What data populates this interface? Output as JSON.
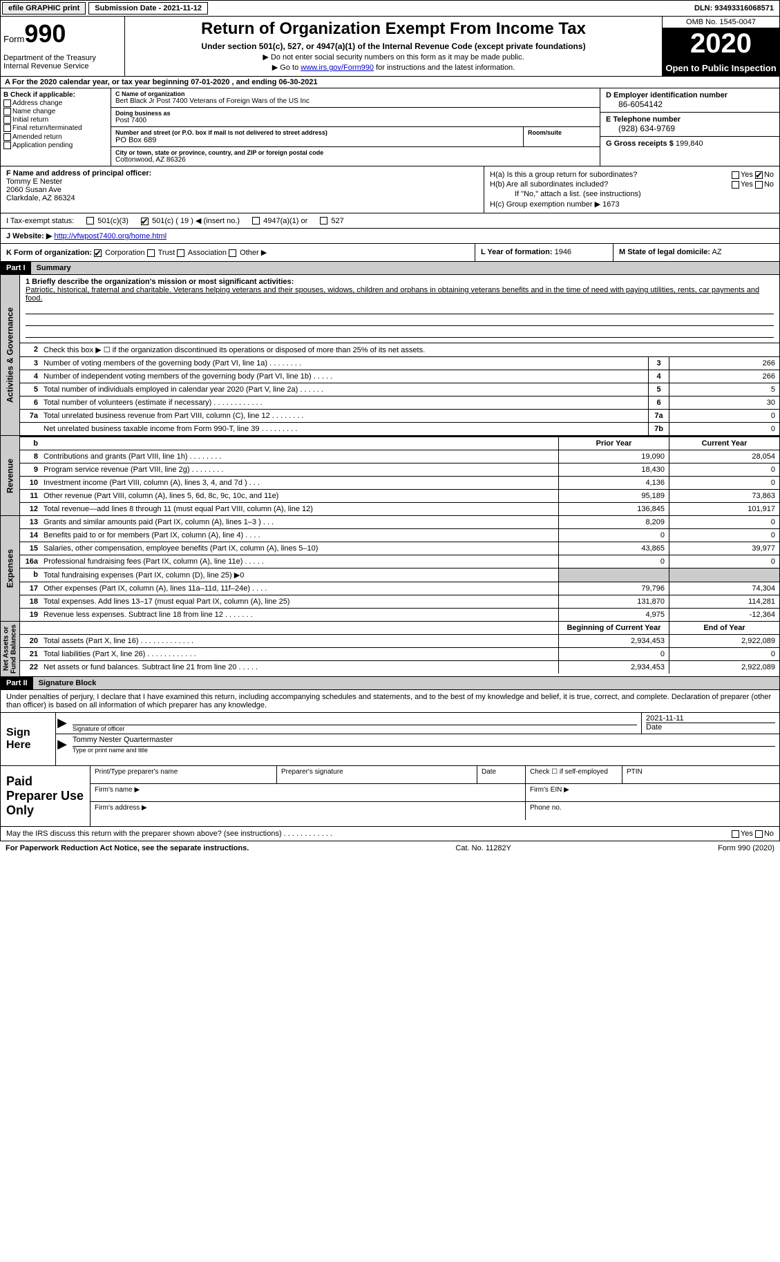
{
  "top": {
    "efile": "efile GRAPHIC print",
    "submission": "Submission Date - 2021-11-12",
    "dln": "DLN: 93493316068571"
  },
  "header": {
    "form_word": "Form",
    "form_num": "990",
    "dept": "Department of the Treasury\nInternal Revenue Service",
    "title": "Return of Organization Exempt From Income Tax",
    "subtitle": "Under section 501(c), 527, or 4947(a)(1) of the Internal Revenue Code (except private foundations)",
    "note1": "▶ Do not enter social security numbers on this form as it may be made public.",
    "note2_pre": "▶ Go to ",
    "note2_link": "www.irs.gov/Form990",
    "note2_post": " for instructions and the latest information.",
    "omb": "OMB No. 1545-0047",
    "year": "2020",
    "inspection": "Open to Public Inspection"
  },
  "rowA": "A For the 2020 calendar year, or tax year beginning 07-01-2020    , and ending 06-30-2021",
  "B": {
    "hdr": "B Check if applicable:",
    "opts": [
      "Address change",
      "Name change",
      "Initial return",
      "Final return/terminated",
      "Amended return",
      "Application pending"
    ]
  },
  "C": {
    "name_lbl": "C Name of organization",
    "name": "Bert Black Jr Post 7400 Veterans of Foreign Wars of the US Inc",
    "dba_lbl": "Doing business as",
    "dba": "Post 7400",
    "addr_lbl": "Number and street (or P.O. box if mail is not delivered to street address)",
    "addr": "PO Box 689",
    "room_lbl": "Room/suite",
    "city_lbl": "City or town, state or province, country, and ZIP or foreign postal code",
    "city": "Cottonwood, AZ  86326"
  },
  "D": {
    "ein_lbl": "D Employer identification number",
    "ein": "86-6054142",
    "phone_lbl": "E Telephone number",
    "phone": "(928) 634-9769",
    "gross_lbl": "G Gross receipts $",
    "gross": "199,840"
  },
  "F": {
    "lbl": "F  Name and address of principal officer:",
    "name": "Tommy E Nester",
    "addr1": "2060 Susan Ave",
    "addr2": "Clarkdale, AZ  86324"
  },
  "H": {
    "a": "H(a)  Is this a group return for subordinates?",
    "b": "H(b)  Are all subordinates included?",
    "b_note": "If \"No,\" attach a list. (see instructions)",
    "c": "H(c)  Group exemption number ▶",
    "c_val": "1673",
    "yes": "Yes",
    "no": "No"
  },
  "I": {
    "lbl": "I   Tax-exempt status:",
    "o1": "501(c)(3)",
    "o2": "501(c) ( 19 ) ◀ (insert no.)",
    "o3": "4947(a)(1) or",
    "o4": "527"
  },
  "J": {
    "lbl": "J   Website: ▶",
    "url": "http://vfwpost7400.org/home.html"
  },
  "K": {
    "lbl": "K Form of organization:",
    "o1": "Corporation",
    "o2": "Trust",
    "o3": "Association",
    "o4": "Other ▶"
  },
  "L": {
    "lbl": "L Year of formation:",
    "val": "1946"
  },
  "M": {
    "lbl": "M State of legal domicile:",
    "val": "AZ"
  },
  "part1": {
    "num": "Part I",
    "title": "Summary"
  },
  "mission": {
    "lbl": "1   Briefly describe the organization's mission or most significant activities:",
    "text": "Patriotic, historical, fraternal and charitable. Veterans helping veterans and their spouses, widows, children and orphans in obtaining veterans benefits and in the time of need with paying utilities, rents, car payments and food."
  },
  "line2": "Check this box ▶ ☐  if the organization discontinued its operations or disposed of more than 25% of its net assets.",
  "gov_lines": [
    {
      "n": "3",
      "d": "Number of voting members of the governing body (Part VI, line 1a)   .    .    .    .    .    .    .    .",
      "b": "3",
      "v": "266"
    },
    {
      "n": "4",
      "d": "Number of independent voting members of the governing body (Part VI, line 1b)   .    .    .    .    .",
      "b": "4",
      "v": "266"
    },
    {
      "n": "5",
      "d": "Total number of individuals employed in calendar year 2020 (Part V, line 2a)   .    .    .    .    .    .",
      "b": "5",
      "v": "5"
    },
    {
      "n": "6",
      "d": "Total number of volunteers (estimate if necessary)   .    .    .    .    .    .    .    .    .    .    .    .",
      "b": "6",
      "v": "30"
    },
    {
      "n": "7a",
      "d": "Total unrelated business revenue from Part VIII, column (C), line 12   .    .    .    .    .    .    .    .",
      "b": "7a",
      "v": "0"
    },
    {
      "n": "",
      "d": "Net unrelated business taxable income from Form 990-T, line 39   .    .    .    .    .    .    .    .    .",
      "b": "7b",
      "v": "0"
    }
  ],
  "col_hdr": {
    "prior": "Prior Year",
    "current": "Current Year"
  },
  "revenue": [
    {
      "n": "8",
      "d": "Contributions and grants (Part VIII, line 1h)   .    .    .    .    .    .    .    .",
      "p": "19,090",
      "c": "28,054"
    },
    {
      "n": "9",
      "d": "Program service revenue (Part VIII, line 2g)   .    .    .    .    .    .    .    .",
      "p": "18,430",
      "c": "0"
    },
    {
      "n": "10",
      "d": "Investment income (Part VIII, column (A), lines 3, 4, and 7d )   .    .    .",
      "p": "4,136",
      "c": "0"
    },
    {
      "n": "11",
      "d": "Other revenue (Part VIII, column (A), lines 5, 6d, 8c, 9c, 10c, and 11e)",
      "p": "95,189",
      "c": "73,863"
    },
    {
      "n": "12",
      "d": "Total revenue—add lines 8 through 11 (must equal Part VIII, column (A), line 12)",
      "p": "136,845",
      "c": "101,917"
    }
  ],
  "expenses": [
    {
      "n": "13",
      "d": "Grants and similar amounts paid (Part IX, column (A), lines 1–3 )   .    .    .",
      "p": "8,209",
      "c": "0"
    },
    {
      "n": "14",
      "d": "Benefits paid to or for members (Part IX, column (A), line 4)   .    .    .    .",
      "p": "0",
      "c": "0"
    },
    {
      "n": "15",
      "d": "Salaries, other compensation, employee benefits (Part IX, column (A), lines 5–10)",
      "p": "43,865",
      "c": "39,977"
    },
    {
      "n": "16a",
      "d": "Professional fundraising fees (Part IX, column (A), line 11e)   .    .    .    .    .",
      "p": "0",
      "c": "0"
    },
    {
      "n": "b",
      "d": "Total fundraising expenses (Part IX, column (D), line 25) ▶0",
      "p": "",
      "c": "",
      "grey": true
    },
    {
      "n": "17",
      "d": "Other expenses (Part IX, column (A), lines 11a–11d, 11f–24e)   .    .    .    .",
      "p": "79,796",
      "c": "74,304"
    },
    {
      "n": "18",
      "d": "Total expenses. Add lines 13–17 (must equal Part IX, column (A), line 25)",
      "p": "131,870",
      "c": "114,281"
    },
    {
      "n": "19",
      "d": "Revenue less expenses. Subtract line 18 from line 12   .    .    .    .    .    .    .",
      "p": "4,975",
      "c": "-12,364"
    }
  ],
  "net_hdr": {
    "begin": "Beginning of Current Year",
    "end": "End of Year"
  },
  "net": [
    {
      "n": "20",
      "d": "Total assets (Part X, line 16)   .    .    .    .    .    .    .    .    .    .    .    .    .",
      "p": "2,934,453",
      "c": "2,922,089"
    },
    {
      "n": "21",
      "d": "Total liabilities (Part X, line 26)   .    .    .    .    .    .    .    .    .    .    .    .",
      "p": "0",
      "c": "0"
    },
    {
      "n": "22",
      "d": "Net assets or fund balances. Subtract line 21 from line 20   .    .    .    .    .",
      "p": "2,934,453",
      "c": "2,922,089"
    }
  ],
  "sides": {
    "gov": "Activities & Governance",
    "rev": "Revenue",
    "exp": "Expenses",
    "net": "Net Assets or\nFund Balances"
  },
  "part2": {
    "num": "Part II",
    "title": "Signature Block"
  },
  "sig_intro": "Under penalties of perjury, I declare that I have examined this return, including accompanying schedules and statements, and to the best of my knowledge and belief, it is true, correct, and complete. Declaration of preparer (other than officer) is based on all information of which preparer has any knowledge.",
  "sign": {
    "here": "Sign Here",
    "sig_lbl": "Signature of officer",
    "date_lbl": "Date",
    "date": "2021-11-11",
    "name": "Tommy Nester Quartermaster",
    "name_lbl": "Type or print name and title"
  },
  "paid": {
    "title": "Paid Preparer Use Only",
    "r1": [
      "Print/Type preparer's name",
      "Preparer's signature",
      "Date",
      "Check ☐ if self-employed",
      "PTIN"
    ],
    "firm_name": "Firm's name   ▶",
    "firm_ein": "Firm's EIN ▶",
    "firm_addr": "Firm's address ▶",
    "phone": "Phone no."
  },
  "discuss": "May the IRS discuss this return with the preparer shown above? (see instructions)   .    .    .    .    .    .    .    .    .    .    .    .",
  "footer": {
    "left": "For Paperwork Reduction Act Notice, see the separate instructions.",
    "mid": "Cat. No. 11282Y",
    "right": "Form 990 (2020)"
  }
}
